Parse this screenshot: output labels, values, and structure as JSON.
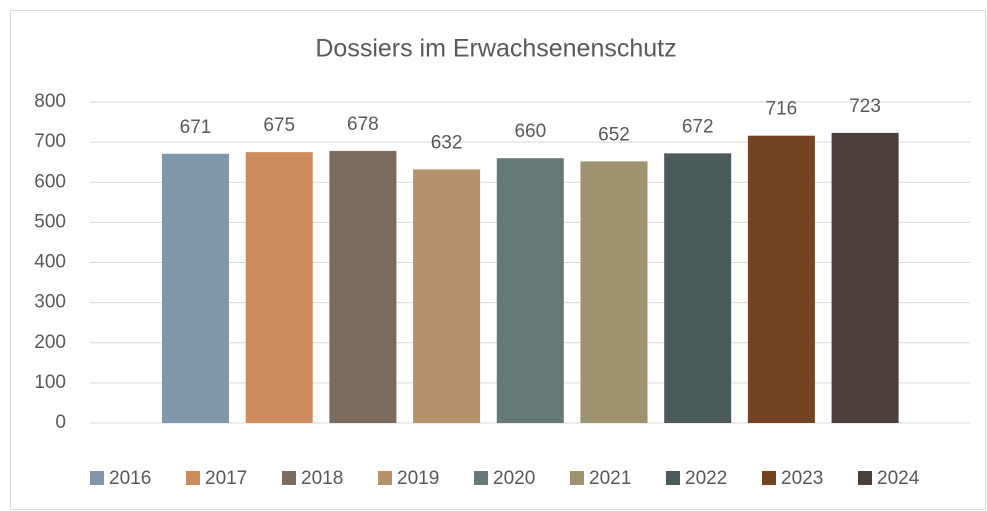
{
  "chart_data": {
    "type": "bar",
    "title": "Dossiers im Erwachsenenschutz",
    "categories": [
      null
    ],
    "series": [
      {
        "name": "2016",
        "color": "#7f96ab",
        "values": [
          671
        ]
      },
      {
        "name": "2017",
        "color": "#cd8b5e",
        "values": [
          675
        ]
      },
      {
        "name": "2018",
        "color": "#7b6a5e",
        "values": [
          678
        ]
      },
      {
        "name": "2019",
        "color": "#b5926b",
        "values": [
          632
        ]
      },
      {
        "name": "2020",
        "color": "#667878",
        "values": [
          660
        ]
      },
      {
        "name": "2021",
        "color": "#9e936e",
        "values": [
          652
        ]
      },
      {
        "name": "2022",
        "color": "#4b5a5a",
        "values": [
          672
        ]
      },
      {
        "name": "2023",
        "color": "#734324",
        "values": [
          716
        ]
      },
      {
        "name": "2024",
        "color": "#4a3f39",
        "values": [
          723
        ]
      }
    ],
    "ylim": [
      0,
      800
    ],
    "yticks": [
      0,
      100,
      200,
      300,
      400,
      500,
      600,
      700,
      800
    ],
    "grid": true,
    "legend": "bottom"
  }
}
